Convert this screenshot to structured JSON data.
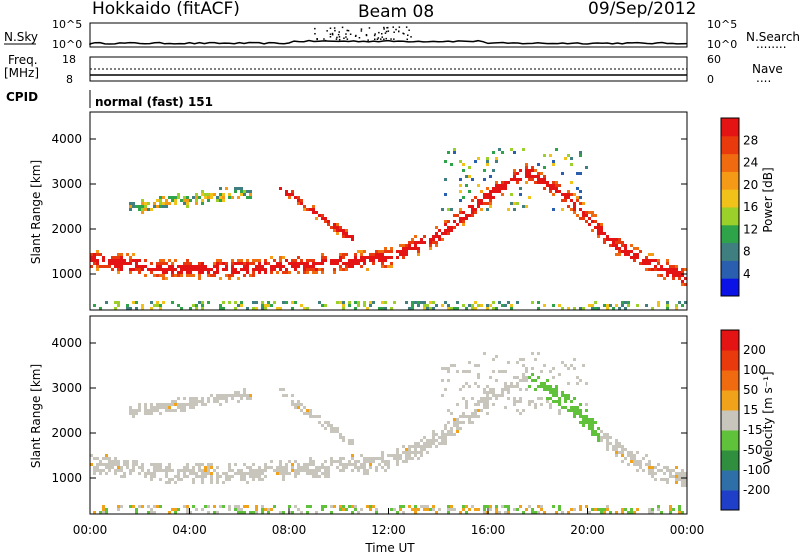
{
  "header": {
    "station": "Hokkaido (fitACF)",
    "beam": "Beam 08",
    "date": "09/Sep/2012"
  },
  "top_panels": {
    "nsky": {
      "left_label": "N.Sky",
      "left_ticks": [
        "10^5",
        "10^0"
      ],
      "right_ticks": [
        "10^5",
        "10^0"
      ],
      "right_label": "N.Search",
      "right_legend_line": "........"
    },
    "freq": {
      "left_label_1": "Freq.",
      "left_label_2": "[MHz]",
      "left_ticks": [
        "18",
        "8"
      ],
      "right_ticks": [
        "60",
        "0"
      ],
      "right_label": "Nave",
      "right_legend_line": "...."
    },
    "cpid": {
      "label": "CPID",
      "value": "normal (fast) 151"
    }
  },
  "chart_data": [
    {
      "type": "heatmap",
      "name": "power",
      "ylabel": "Slant Range [km]",
      "xlabel": "",
      "ylim": [
        200,
        4600
      ],
      "yticks": [
        1000,
        2000,
        3000,
        4000
      ],
      "xlim_hours": [
        0,
        24
      ],
      "colorbar": {
        "label": "Power [dB]",
        "ticks": [
          4,
          8,
          12,
          16,
          20,
          24,
          28
        ],
        "colors": [
          "#0b12e6",
          "#2a5fb0",
          "#3f7f7f",
          "#2fa34a",
          "#9bcf2a",
          "#f0c21a",
          "#f59a16",
          "#f06a10",
          "#e83a0c",
          "#e51414"
        ]
      },
      "bands": [
        {
          "t": [
            0,
            3,
            6,
            9,
            12,
            14,
            16,
            17.5,
            19,
            21,
            22.5,
            24
          ],
          "r": [
            1350,
            1150,
            1150,
            1250,
            1400,
            1900,
            2800,
            3300,
            2800,
            1700,
            1250,
            950
          ],
          "level": "strong"
        },
        {
          "t": [
            7.5,
            8.5,
            9.5,
            10.5
          ],
          "r": [
            3000,
            2600,
            2200,
            1800
          ],
          "level": "strong"
        },
        {
          "t": [
            1.5,
            4,
            6.5
          ],
          "r": [
            2500,
            2700,
            2900
          ],
          "level": "weak"
        }
      ]
    },
    {
      "type": "heatmap",
      "name": "velocity",
      "ylabel": "Slant Range [km]",
      "xlabel": "Time UT",
      "ylim": [
        200,
        4600
      ],
      "yticks": [
        1000,
        2000,
        3000,
        4000
      ],
      "xlim_hours": [
        0,
        24
      ],
      "xticks": [
        "00:00",
        "04:00",
        "08:00",
        "12:00",
        "16:00",
        "20:00",
        "00:00"
      ],
      "colorbar": {
        "label": "Velocity [m s⁻¹]",
        "ticks": [
          200,
          100,
          50,
          15,
          -15,
          -50,
          -100,
          -200
        ],
        "colors": [
          "#1f3fc8",
          "#2f6fa8",
          "#2f8f3f",
          "#5fc23a",
          "#c8c5bd",
          "#f0a21a",
          "#f06a10",
          "#e83a0c",
          "#e51414"
        ]
      }
    }
  ]
}
